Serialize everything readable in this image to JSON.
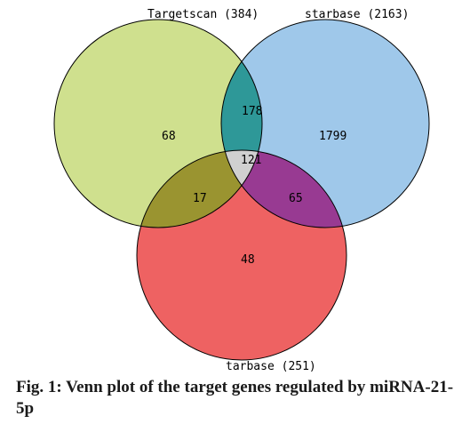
{
  "sets": {
    "targetscan": {
      "label": "Targetscan (384)",
      "color": "#cfe08e"
    },
    "starbase": {
      "label": "starbase (2163)",
      "color": "#9fc8ea"
    },
    "tarbase": {
      "label": "tarbase (251)",
      "color": "#ee6262"
    }
  },
  "regions": {
    "targetscan_only": {
      "count": "68"
    },
    "starbase_only": {
      "count": "1799"
    },
    "tarbase_only": {
      "count": "48"
    },
    "targetscan_starbase": {
      "count": "178",
      "color": "#2e9898"
    },
    "targetscan_tarbase": {
      "count": "17",
      "color": "#9a9430"
    },
    "starbase_tarbase": {
      "count": "65",
      "color": "#983a92"
    },
    "all_three": {
      "count": "121",
      "color": "#d0d0d0"
    }
  },
  "caption": "Fig. 1: Venn plot of the target genes regulated by miRNA-21-5p"
}
